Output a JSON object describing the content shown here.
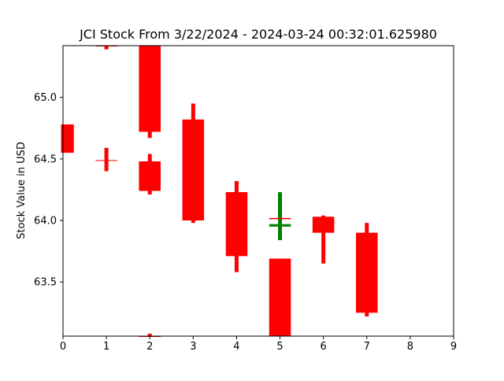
{
  "chart_data": {
    "type": "candlestick",
    "title": "JCI Stock From 3/22/2024 - 2024-03-24 00:32:01.625980",
    "xlabel": "",
    "ylabel": "Stock Value in USD",
    "xlim": [
      0,
      9
    ],
    "ylim": [
      63.06,
      65.42
    ],
    "xticks": [
      "0",
      "1",
      "2",
      "3",
      "4",
      "5",
      "6",
      "7",
      "8",
      "9"
    ],
    "yticks": [
      "63.5",
      "64.0",
      "64.5",
      "65.0"
    ],
    "grid": false,
    "colors": {
      "up": "#008000",
      "down": "#ff0000"
    },
    "candles": [
      {
        "x": 0,
        "open": 64.78,
        "close": 64.55,
        "high": 64.78,
        "low": 64.55
      },
      {
        "x": 1,
        "open": 64.49,
        "close": 64.49,
        "high": 64.59,
        "low": 64.4
      },
      {
        "x": 1,
        "open": 65.42,
        "close": 65.42,
        "high": 65.42,
        "low": 65.39
      },
      {
        "x": 2,
        "open": 65.42,
        "close": 64.72,
        "high": 65.42,
        "low": 64.67
      },
      {
        "x": 2,
        "open": 64.48,
        "close": 64.24,
        "high": 64.54,
        "low": 64.21
      },
      {
        "x": 2,
        "open": 63.06,
        "close": 63.06,
        "high": 63.08,
        "low": 63.06
      },
      {
        "x": 3,
        "open": 64.82,
        "close": 64.0,
        "high": 64.95,
        "low": 63.98
      },
      {
        "x": 4,
        "open": 64.23,
        "close": 63.71,
        "high": 64.32,
        "low": 63.58
      },
      {
        "x": 5,
        "open": 63.95,
        "close": 63.97,
        "high": 64.23,
        "low": 63.84
      },
      {
        "x": 5,
        "open": 64.02,
        "close": 64.01,
        "high": 64.02,
        "low": 64.01
      },
      {
        "x": 5,
        "open": 63.69,
        "close": 63.06,
        "high": 63.69,
        "low": 63.06
      },
      {
        "x": 6,
        "open": 64.03,
        "close": 63.9,
        "high": 64.04,
        "low": 63.65
      },
      {
        "x": 7,
        "open": 63.9,
        "close": 63.25,
        "high": 63.98,
        "low": 63.22
      }
    ]
  }
}
